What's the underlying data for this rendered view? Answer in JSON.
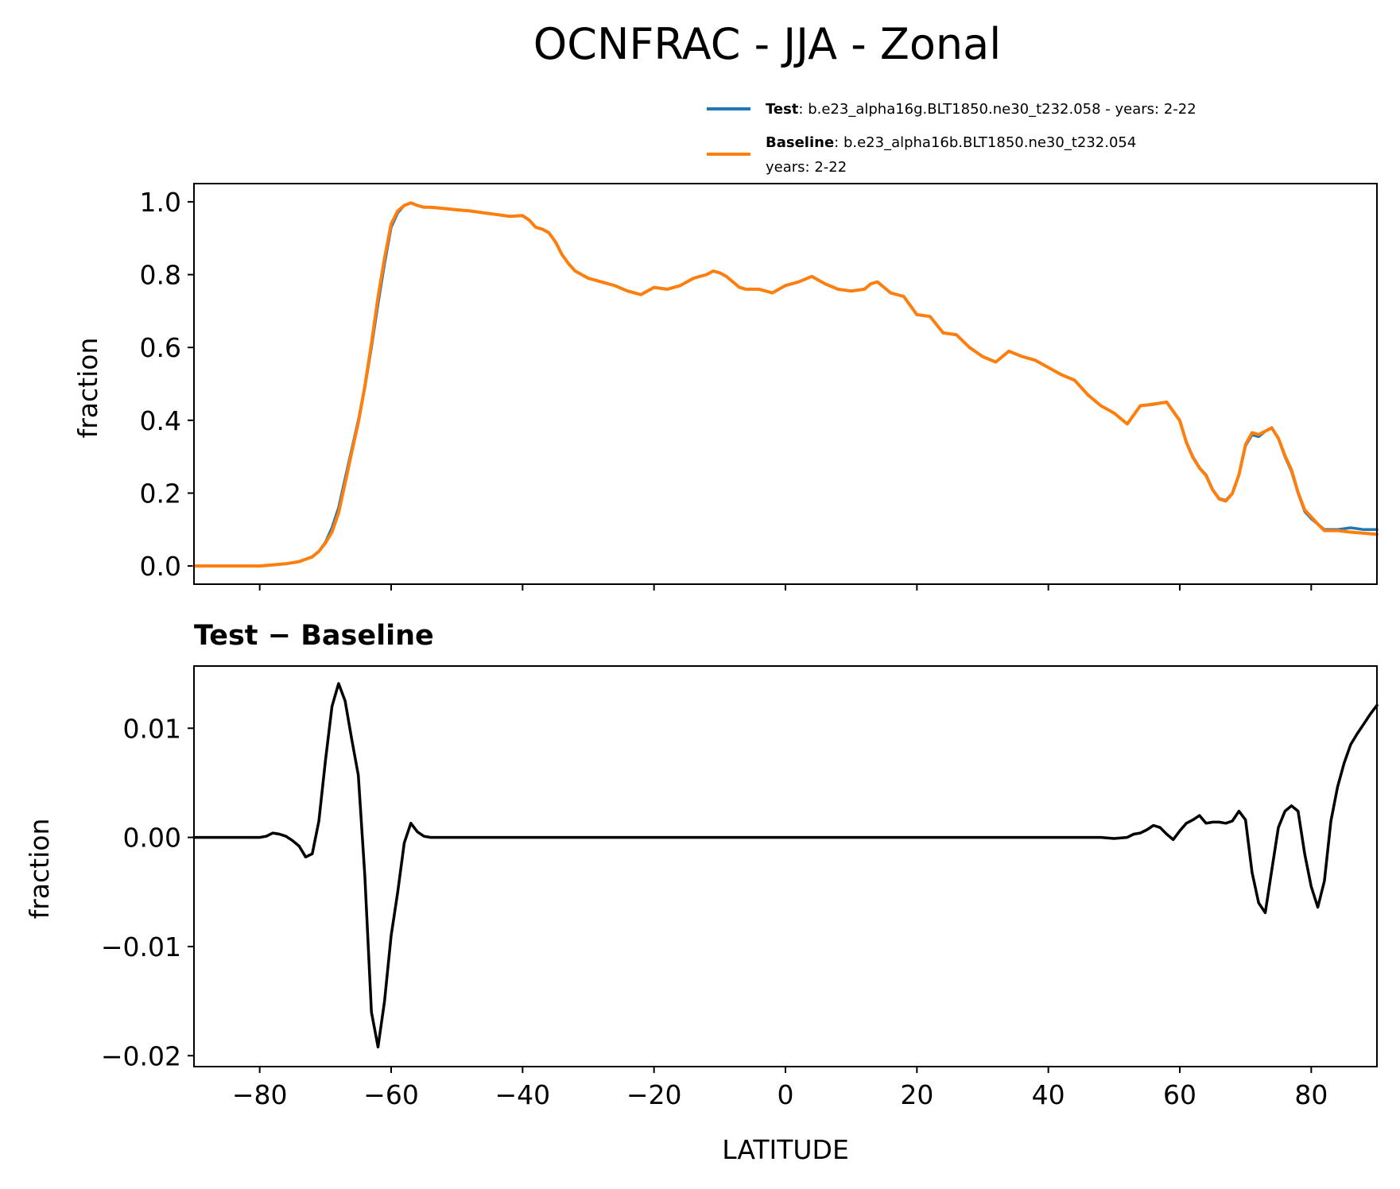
{
  "colors": {
    "test": "#1f77b4",
    "baseline": "#ff7f0e",
    "diff": "#000000"
  },
  "chart_data": [
    {
      "type": "line",
      "title": "OCNFRAC - JJA - Zonal",
      "xlabel": "",
      "ylabel": "fraction",
      "xlim": [
        -90,
        90
      ],
      "ylim": [
        -0.05,
        1.05
      ],
      "yticks": [
        0.0,
        0.2,
        0.4,
        0.6,
        0.8,
        1.0
      ],
      "ytick_labels": [
        "0.0",
        "0.2",
        "0.4",
        "0.6",
        "0.8",
        "1.0"
      ],
      "xticks": [
        -80,
        -60,
        -40,
        -20,
        0,
        20,
        40,
        60,
        80
      ],
      "grid": false,
      "legend_position": "above-right",
      "legend": [
        {
          "bold": "Test",
          "text": ": b.e23_alpha16g.BLT1850.ne30_t232.058 - years: 2-22",
          "text2": ""
        },
        {
          "bold": "Baseline",
          "text": ": b.e23_alpha16b.BLT1850.ne30_t232.054",
          "text2": "years: 2-22"
        }
      ],
      "series": [
        {
          "name": "Test",
          "x": [
            -90,
            -88,
            -86,
            -84,
            -82,
            -80,
            -78,
            -76,
            -74,
            -72,
            -71,
            -70,
            -69,
            -68,
            -67,
            -66,
            -65,
            -64,
            -63,
            -62,
            -61,
            -60,
            -59,
            -58,
            -57,
            -56,
            -55,
            -54,
            -52,
            -50,
            -48,
            -46,
            -44,
            -42,
            -40,
            -39,
            -38,
            -37,
            -36,
            -35,
            -34,
            -33,
            -32,
            -31,
            -30,
            -28,
            -26,
            -24,
            -22,
            -20,
            -18,
            -16,
            -14,
            -12,
            -11,
            -10,
            -9,
            -8,
            -7,
            -6,
            -4,
            -2,
            0,
            2,
            4,
            6,
            8,
            10,
            12,
            13,
            14,
            16,
            18,
            20,
            22,
            24,
            26,
            28,
            30,
            32,
            34,
            36,
            38,
            40,
            42,
            44,
            46,
            48,
            50,
            52,
            54,
            56,
            58,
            60,
            61,
            62,
            63,
            64,
            65,
            66,
            67,
            68,
            69,
            70,
            71,
            72,
            73,
            74,
            75,
            76,
            77,
            78,
            79,
            80,
            81,
            82,
            84,
            86,
            88,
            90
          ],
          "values": [
            0.0,
            0.0,
            0.0,
            0.0,
            0.0,
            0.0,
            0.003,
            0.006,
            0.012,
            0.025,
            0.04,
            0.065,
            0.105,
            0.16,
            0.24,
            0.32,
            0.4,
            0.49,
            0.6,
            0.72,
            0.83,
            0.93,
            0.97,
            0.99,
            0.997,
            0.99,
            0.985,
            0.985,
            0.982,
            0.978,
            0.975,
            0.97,
            0.965,
            0.96,
            0.962,
            0.95,
            0.93,
            0.925,
            0.915,
            0.89,
            0.855,
            0.83,
            0.81,
            0.8,
            0.79,
            0.78,
            0.77,
            0.755,
            0.745,
            0.765,
            0.76,
            0.77,
            0.79,
            0.8,
            0.81,
            0.805,
            0.795,
            0.78,
            0.765,
            0.76,
            0.76,
            0.75,
            0.77,
            0.78,
            0.795,
            0.775,
            0.76,
            0.755,
            0.76,
            0.775,
            0.78,
            0.75,
            0.74,
            0.69,
            0.685,
            0.64,
            0.635,
            0.6,
            0.575,
            0.56,
            0.59,
            0.575,
            0.565,
            0.545,
            0.525,
            0.51,
            0.47,
            0.44,
            0.42,
            0.39,
            0.44,
            0.445,
            0.45,
            0.4,
            0.34,
            0.3,
            0.27,
            0.25,
            0.21,
            0.185,
            0.18,
            0.2,
            0.25,
            0.33,
            0.36,
            0.355,
            0.37,
            0.38,
            0.35,
            0.3,
            0.26,
            0.2,
            0.15,
            0.13,
            0.115,
            0.1,
            0.1,
            0.105,
            0.1,
            0.1
          ]
        },
        {
          "name": "Baseline",
          "x": [
            -90,
            -88,
            -86,
            -84,
            -82,
            -80,
            -78,
            -76,
            -74,
            -72,
            -71,
            -70,
            -69,
            -68,
            -67,
            -66,
            -65,
            -64,
            -63,
            -62,
            -61,
            -60,
            -59,
            -58,
            -57,
            -56,
            -55,
            -54,
            -52,
            -50,
            -48,
            -46,
            -44,
            -42,
            -40,
            -39,
            -38,
            -37,
            -36,
            -35,
            -34,
            -33,
            -32,
            -31,
            -30,
            -28,
            -26,
            -24,
            -22,
            -20,
            -18,
            -16,
            -14,
            -12,
            -11,
            -10,
            -9,
            -8,
            -7,
            -6,
            -4,
            -2,
            0,
            2,
            4,
            6,
            8,
            10,
            12,
            13,
            14,
            16,
            18,
            20,
            22,
            24,
            26,
            28,
            30,
            32,
            34,
            36,
            38,
            40,
            42,
            44,
            46,
            48,
            50,
            52,
            54,
            56,
            58,
            60,
            61,
            62,
            63,
            64,
            65,
            66,
            67,
            68,
            69,
            70,
            71,
            72,
            73,
            74,
            75,
            76,
            77,
            78,
            79,
            80,
            81,
            82,
            84,
            86,
            88,
            90
          ],
          "values": [
            0.0,
            0.0,
            0.0,
            0.0,
            0.0,
            0.0,
            0.003,
            0.006,
            0.012,
            0.025,
            0.04,
            0.063,
            0.093,
            0.146,
            0.227,
            0.312,
            0.394,
            0.493,
            0.61,
            0.738,
            0.845,
            0.939,
            0.975,
            0.99,
            0.997,
            0.99,
            0.985,
            0.985,
            0.982,
            0.978,
            0.975,
            0.97,
            0.965,
            0.96,
            0.962,
            0.95,
            0.93,
            0.925,
            0.915,
            0.89,
            0.855,
            0.83,
            0.81,
            0.8,
            0.79,
            0.78,
            0.77,
            0.755,
            0.745,
            0.765,
            0.76,
            0.77,
            0.79,
            0.8,
            0.81,
            0.805,
            0.795,
            0.78,
            0.765,
            0.76,
            0.76,
            0.75,
            0.77,
            0.78,
            0.795,
            0.775,
            0.76,
            0.755,
            0.76,
            0.775,
            0.78,
            0.75,
            0.74,
            0.69,
            0.685,
            0.64,
            0.635,
            0.6,
            0.575,
            0.56,
            0.59,
            0.575,
            0.565,
            0.545,
            0.525,
            0.51,
            0.47,
            0.44,
            0.42,
            0.39,
            0.44,
            0.444,
            0.45,
            0.399,
            0.339,
            0.298,
            0.269,
            0.248,
            0.209,
            0.184,
            0.178,
            0.199,
            0.25,
            0.333,
            0.366,
            0.361,
            0.37,
            0.379,
            0.351,
            0.303,
            0.264,
            0.202,
            0.154,
            0.135,
            0.115,
            0.097,
            0.097,
            0.093,
            0.09,
            0.087
          ]
        }
      ]
    },
    {
      "type": "line",
      "title": "Test − Baseline",
      "xlabel": "LATITUDE",
      "ylabel": "fraction",
      "xlim": [
        -90,
        90
      ],
      "ylim": [
        -0.021,
        0.0157
      ],
      "yticks": [
        -0.02,
        -0.01,
        0.0,
        0.01
      ],
      "ytick_labels": [
        "−0.02",
        "−0.01",
        "0.00",
        "0.01"
      ],
      "xticks": [
        -80,
        -60,
        -40,
        -20,
        0,
        20,
        40,
        60,
        80
      ],
      "xtick_labels": [
        "−80",
        "−60",
        "−40",
        "−20",
        "0",
        "20",
        "40",
        "60",
        "80"
      ],
      "grid": false,
      "series": [
        {
          "name": "",
          "x": [
            -90,
            -86,
            -82,
            -80,
            -79,
            -78,
            -77,
            -76,
            -75,
            -74,
            -73,
            -72,
            -71,
            -70,
            -69,
            -68,
            -67,
            -66,
            -65,
            -64,
            -63,
            -62,
            -61,
            -60,
            -59,
            -58,
            -57,
            -56,
            -55,
            -54,
            -52,
            -50,
            -40,
            -20,
            0,
            20,
            40,
            48,
            50,
            52,
            53,
            54,
            55,
            56,
            57,
            58,
            59,
            60,
            61,
            62,
            63,
            64,
            65,
            66,
            67,
            68,
            69,
            70,
            71,
            72,
            73,
            74,
            75,
            76,
            77,
            78,
            79,
            80,
            81,
            82,
            83,
            84,
            85,
            86,
            87,
            88,
            89,
            90
          ],
          "values": [
            0,
            0,
            0,
            0,
            0.0001,
            0.0004,
            0.0003,
            0.0001,
            -0.0003,
            -0.0008,
            -0.0018,
            -0.0015,
            0.0015,
            0.007,
            0.012,
            0.0141,
            0.0125,
            0.009,
            0.0057,
            -0.0035,
            -0.016,
            -0.0192,
            -0.015,
            -0.009,
            -0.005,
            -0.0005,
            0.0013,
            0.0005,
            0.0001,
            0,
            0,
            0,
            0,
            0,
            0,
            0,
            0,
            0,
            -0.0001,
            0,
            0.0003,
            0.0004,
            0.0007,
            0.0011,
            0.0009,
            0.0003,
            -0.0002,
            0.0006,
            0.0013,
            0.0016,
            0.002,
            0.0013,
            0.0014,
            0.0014,
            0.0013,
            0.0015,
            0.0024,
            0.0016,
            -0.0032,
            -0.006,
            -0.0069,
            -0.003,
            0.0009,
            0.0024,
            0.0029,
            0.0024,
            -0.0015,
            -0.0045,
            -0.0064,
            -0.004,
            0.0015,
            0.0046,
            0.0068,
            0.0085,
            0.0095,
            0.0104,
            0.0113,
            0.0121
          ]
        }
      ]
    }
  ]
}
